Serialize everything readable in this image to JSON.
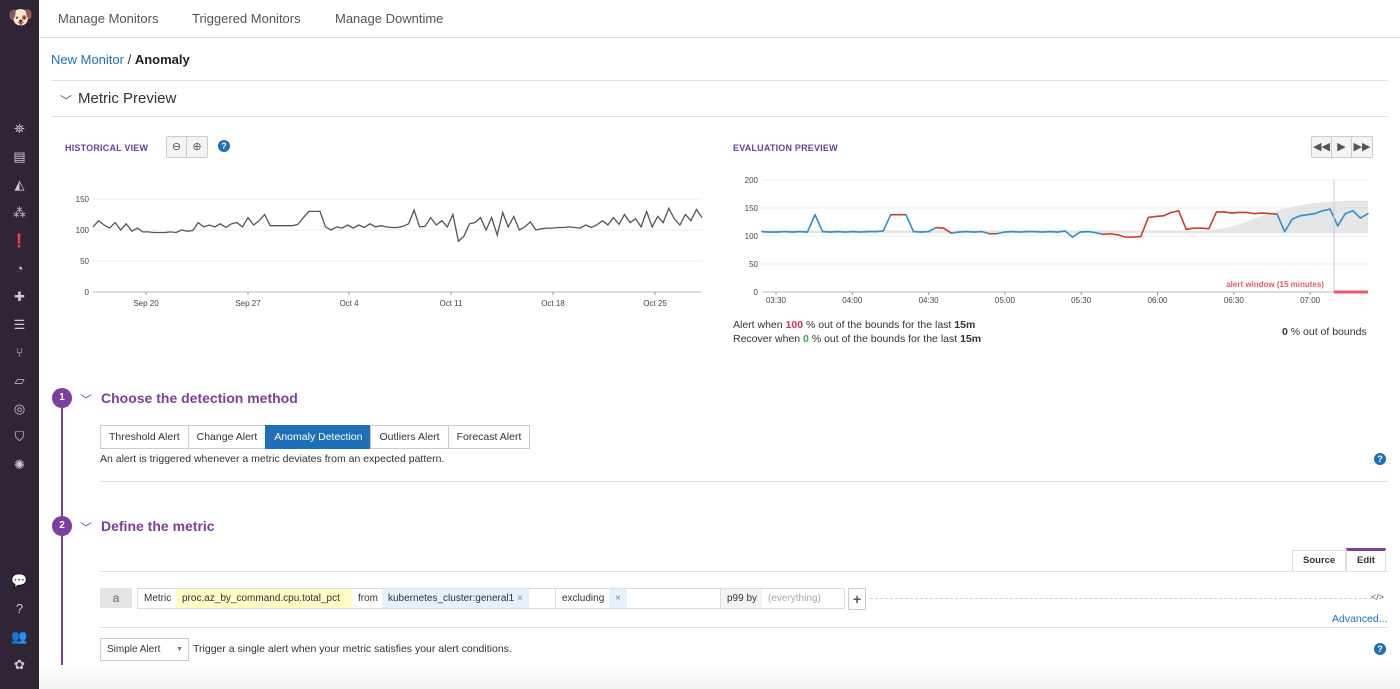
{
  "nav": {
    "tabs": [
      "Manage Monitors",
      "Triggered Monitors",
      "Manage Downtime"
    ]
  },
  "breadcrumb": {
    "parent": "New Monitor",
    "separator": "/",
    "current": "Anomaly"
  },
  "metric_preview": {
    "title": "Metric Preview"
  },
  "historical": {
    "label": "HISTORICAL VIEW"
  },
  "evaluation": {
    "label": "EVALUATION PREVIEW",
    "alert_window": "alert window (15 minutes)",
    "alert_prefix": "Alert when",
    "alert_value": "100",
    "alert_mid": "% out of the bounds for the last",
    "alert_window_value": "15m",
    "recover_prefix": "Recover when",
    "recover_value": "0",
    "recover_mid": "% out of the bounds for the last",
    "recover_window_value": "15m",
    "out_value": "0",
    "out_label": "% out of bounds"
  },
  "colors": {
    "accent": "#7b3f9e",
    "link": "#1f6fb8",
    "normal_series": "#2b8fd0",
    "anomaly_series": "#c8402a",
    "alert_window": "#e8596e",
    "bounds": "#e0e0e0"
  },
  "chart_data": [
    {
      "type": "line",
      "title": "HISTORICAL VIEW",
      "ylim": [
        0,
        150
      ],
      "yticks": [
        "0",
        "50",
        "100",
        "150"
      ],
      "xticks": [
        "Sep 20",
        "Sep 27",
        "Oct 4",
        "Oct 11",
        "Oct 18",
        "Oct 25"
      ],
      "x_range": [
        "Sep 16",
        "Oct 28"
      ],
      "grid": true,
      "values": [
        105,
        115,
        108,
        103,
        112,
        100,
        110,
        98,
        103,
        97,
        97,
        96,
        96,
        96,
        97,
        96,
        100,
        98,
        99,
        112,
        105,
        108,
        105,
        110,
        104,
        110,
        112,
        105,
        120,
        108,
        115,
        125,
        107,
        107,
        107,
        107,
        107,
        109,
        120,
        130,
        130,
        130,
        105,
        100,
        105,
        103,
        108,
        103,
        108,
        104,
        110,
        105,
        107,
        105,
        104,
        104,
        106,
        110,
        132,
        105,
        106,
        120,
        108,
        115,
        105,
        125,
        82,
        90,
        110,
        112,
        120,
        100,
        120,
        92,
        128,
        105,
        122,
        100,
        105,
        113,
        100,
        102,
        103,
        103,
        104,
        104,
        105,
        104,
        103,
        108,
        104,
        108,
        115,
        108,
        120,
        109,
        125,
        112,
        118,
        105,
        130,
        105,
        122,
        112,
        135,
        118,
        108,
        125,
        115,
        133,
        120
      ]
    },
    {
      "type": "line",
      "title": "EVALUATION PREVIEW",
      "ylim": [
        0,
        200
      ],
      "yticks": [
        "0",
        "50",
        "100",
        "150",
        "200"
      ],
      "xticks": [
        "03:30",
        "04:00",
        "04:30",
        "05:00",
        "05:30",
        "06:00",
        "06:30",
        "07:00"
      ],
      "x_range": [
        "03:24",
        "07:24"
      ],
      "grid": true,
      "values": [
        108,
        107,
        107,
        108,
        107,
        108,
        107,
        138,
        108,
        107,
        108,
        107,
        108,
        107,
        108,
        108,
        109,
        138,
        138,
        138,
        108,
        107,
        108,
        115,
        114,
        105,
        107,
        108,
        107,
        108,
        104,
        104,
        107,
        108,
        107,
        108,
        108,
        107,
        108,
        107,
        109,
        98,
        107,
        108,
        106,
        103,
        104,
        102,
        98,
        98,
        99,
        133,
        135,
        136,
        142,
        145,
        112,
        114,
        114,
        113,
        143,
        143,
        141,
        142,
        142,
        140,
        141,
        140,
        139,
        108,
        130,
        136,
        138,
        140,
        145,
        148,
        118,
        140,
        145,
        132,
        140
      ],
      "anomaly": [
        0,
        0,
        0,
        0,
        0,
        0,
        0,
        1,
        0,
        0,
        0,
        0,
        0,
        0,
        0,
        0,
        0,
        1,
        1,
        1,
        0,
        0,
        0,
        1,
        1,
        1,
        0,
        0,
        0,
        0,
        1,
        1,
        0,
        0,
        0,
        0,
        0,
        0,
        0,
        0,
        0,
        0,
        0,
        0,
        0,
        1,
        1,
        1,
        1,
        1,
        1,
        1,
        1,
        1,
        1,
        1,
        1,
        1,
        1,
        1,
        1,
        1,
        1,
        1,
        1,
        1,
        1,
        1,
        1,
        0,
        0,
        0,
        0,
        0,
        0,
        0,
        0,
        0,
        0,
        0,
        0
      ],
      "bounds_lower": 105,
      "bounds_upper": [
        110,
        110,
        110,
        110,
        110,
        110,
        110,
        110,
        110,
        110,
        110,
        110,
        110,
        110,
        110,
        110,
        110,
        110,
        110,
        110,
        110,
        110,
        110,
        110,
        110,
        110,
        110,
        110,
        110,
        110,
        110,
        110,
        110,
        110,
        110,
        110,
        110,
        110,
        110,
        110,
        110,
        110,
        110,
        110,
        110,
        110,
        110,
        110,
        110,
        110,
        110,
        110,
        110,
        110,
        110,
        110,
        110,
        110,
        110,
        110,
        112,
        114,
        117,
        121,
        126,
        131,
        136,
        141,
        145,
        149,
        152,
        155,
        157,
        159,
        160,
        161,
        162,
        163,
        163,
        163,
        163
      ]
    }
  ],
  "step1": {
    "number": "1",
    "title": "Choose the detection method",
    "methods": [
      "Threshold Alert",
      "Change Alert",
      "Anomaly Detection",
      "Outliers Alert",
      "Forecast Alert"
    ],
    "selected": "Anomaly Detection",
    "description": "An alert is triggered whenever a metric deviates from an expected pattern."
  },
  "step2": {
    "number": "2",
    "title": "Define the metric",
    "tabs": [
      "Source",
      "Edit"
    ],
    "query": {
      "letter": "a",
      "metric_label": "Metric",
      "metric": "proc.az_by_command.cpu.total_pct",
      "from_label": "from",
      "from_tag": "kubernetes_cluster:general1",
      "remove": "×",
      "excluding_label": "excluding",
      "agg_label": "p99 by",
      "by_placeholder": "(everything)",
      "add": "+",
      "code": "</>"
    },
    "advanced": "Advanced...",
    "alert_type": "Simple Alert",
    "alert_type_desc": "Trigger a single alert when your metric satisfies your alert conditions."
  }
}
